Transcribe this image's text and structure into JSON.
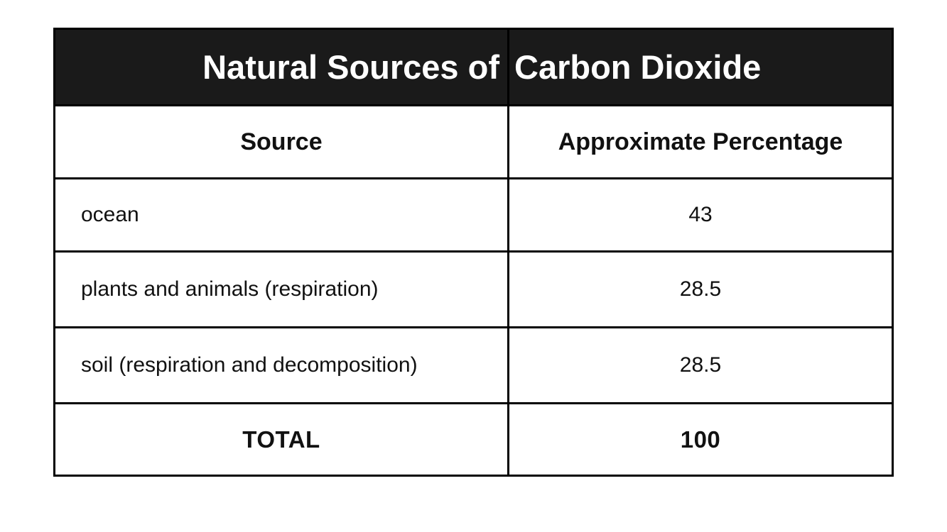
{
  "chart_data": {
    "type": "table",
    "title": "Natural Sources of Carbon Dioxide",
    "columns": [
      "Source",
      "Approximate Percentage"
    ],
    "rows": [
      [
        "ocean",
        "43"
      ],
      [
        "plants and animals (respiration)",
        "28.5"
      ],
      [
        "soil (respiration and decomposition)",
        "28.5"
      ],
      [
        "TOTAL",
        "100"
      ]
    ]
  },
  "ui": {
    "title_left": "Natural Sources of",
    "title_right": "Carbon Dioxide",
    "colors": {
      "title_bar_bg": "#1a1a1a",
      "border": "#000000",
      "title_text": "#ffffff",
      "body_text": "#111111",
      "page_bg": "#ffffff"
    }
  }
}
